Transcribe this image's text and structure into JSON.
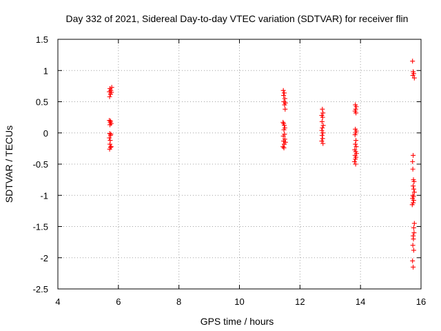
{
  "chart_data": {
    "type": "scatter",
    "title": "Day 332 of 2021, Sidereal Day-to-day VTEC variation (SDTVAR) for receiver flin",
    "xlabel": "GPS time / hours",
    "ylabel": "SDTVAR / TECUs",
    "xlim": [
      4,
      16
    ],
    "ylim": [
      -2.5,
      1.5
    ],
    "xticks": [
      4,
      6,
      8,
      10,
      12,
      14,
      16
    ],
    "yticks": [
      -2.5,
      -2,
      -1.5,
      -1,
      -0.5,
      0,
      0.5,
      1,
      1.5
    ],
    "xtick_labels": [
      "4",
      "6",
      "8",
      "10",
      "12",
      "14",
      "16"
    ],
    "ytick_labels": [
      "-2.5",
      "-2",
      "-1.5",
      "-1",
      "-0.5",
      "0",
      "0.5",
      "1",
      "1.5"
    ],
    "grid": true,
    "marker": "+",
    "color": "#ff0000",
    "series": [
      {
        "values": [
          [
            5.72,
            0.71
          ],
          [
            5.75,
            0.68
          ],
          [
            5.7,
            0.66
          ],
          [
            5.78,
            0.73
          ],
          [
            5.74,
            0.62
          ],
          [
            5.71,
            0.58
          ],
          [
            5.77,
            0.65
          ],
          [
            5.7,
            0.2
          ],
          [
            5.73,
            0.17
          ],
          [
            5.76,
            0.15
          ],
          [
            5.72,
            0.13
          ],
          [
            5.74,
            0.19
          ],
          [
            5.71,
            -0.01
          ],
          [
            5.74,
            -0.04
          ],
          [
            5.7,
            -0.08
          ],
          [
            5.73,
            -0.12
          ],
          [
            5.75,
            -0.02
          ],
          [
            5.72,
            -0.18
          ],
          [
            5.74,
            -0.23
          ],
          [
            5.71,
            -0.26
          ],
          [
            5.76,
            -0.22
          ],
          [
            11.45,
            0.68
          ],
          [
            11.48,
            0.64
          ],
          [
            11.46,
            0.6
          ],
          [
            11.5,
            0.55
          ],
          [
            11.47,
            0.5
          ],
          [
            11.52,
            0.48
          ],
          [
            11.49,
            0.45
          ],
          [
            11.51,
            0.38
          ],
          [
            11.44,
            0.17
          ],
          [
            11.46,
            0.15
          ],
          [
            11.48,
            0.12
          ],
          [
            11.5,
            0.08
          ],
          [
            11.47,
            0.05
          ],
          [
            11.49,
            -0.02
          ],
          [
            11.45,
            -0.05
          ],
          [
            11.5,
            -0.1
          ],
          [
            11.46,
            -0.13
          ],
          [
            11.52,
            -0.15
          ],
          [
            11.48,
            -0.18
          ],
          [
            11.44,
            -0.22
          ],
          [
            11.47,
            -0.24
          ],
          [
            12.74,
            0.38
          ],
          [
            12.76,
            0.32
          ],
          [
            12.72,
            0.28
          ],
          [
            12.75,
            0.25
          ],
          [
            12.73,
            0.18
          ],
          [
            12.77,
            0.12
          ],
          [
            12.74,
            0.08
          ],
          [
            12.72,
            0.04
          ],
          [
            12.76,
            0.0
          ],
          [
            12.73,
            -0.04
          ],
          [
            12.75,
            -0.09
          ],
          [
            12.72,
            -0.13
          ],
          [
            12.76,
            -0.17
          ],
          [
            13.83,
            0.45
          ],
          [
            13.86,
            0.42
          ],
          [
            13.84,
            0.38
          ],
          [
            13.82,
            0.35
          ],
          [
            13.85,
            0.32
          ],
          [
            13.83,
            0.06
          ],
          [
            13.86,
            0.03
          ],
          [
            13.84,
            0.0
          ],
          [
            13.82,
            -0.03
          ],
          [
            13.85,
            -0.12
          ],
          [
            13.83,
            -0.18
          ],
          [
            13.86,
            -0.22
          ],
          [
            13.81,
            -0.27
          ],
          [
            13.84,
            -0.3
          ],
          [
            13.87,
            -0.33
          ],
          [
            13.82,
            -0.36
          ],
          [
            13.85,
            -0.39
          ],
          [
            13.83,
            -0.42
          ],
          [
            13.8,
            -0.46
          ],
          [
            13.84,
            -0.5
          ],
          [
            15.72,
            1.15
          ],
          [
            15.74,
            0.98
          ],
          [
            15.76,
            0.95
          ],
          [
            15.73,
            0.92
          ],
          [
            15.78,
            0.88
          ],
          [
            15.74,
            -0.36
          ],
          [
            15.72,
            -0.46
          ],
          [
            15.73,
            -0.58
          ],
          [
            15.75,
            -0.75
          ],
          [
            15.77,
            -0.78
          ],
          [
            15.74,
            -0.85
          ],
          [
            15.76,
            -0.9
          ],
          [
            15.78,
            -0.95
          ],
          [
            15.73,
            -1.0
          ],
          [
            15.75,
            -1.02
          ],
          [
            15.72,
            -1.05
          ],
          [
            15.76,
            -1.08
          ],
          [
            15.74,
            -1.12
          ],
          [
            15.71,
            -1.15
          ],
          [
            15.78,
            -1.45
          ],
          [
            15.76,
            -1.52
          ],
          [
            15.77,
            -1.6
          ],
          [
            15.74,
            -1.65
          ],
          [
            15.75,
            -1.7
          ],
          [
            15.73,
            -1.8
          ],
          [
            15.76,
            -1.88
          ],
          [
            15.72,
            -2.05
          ],
          [
            15.74,
            -2.15
          ]
        ]
      }
    ]
  }
}
